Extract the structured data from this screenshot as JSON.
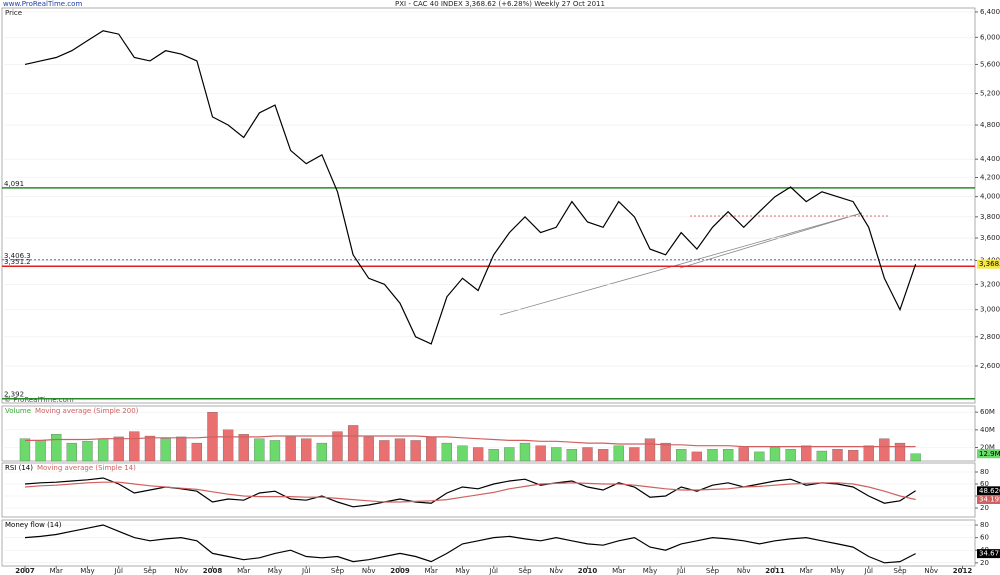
{
  "header": {
    "site": "www.ProRealTime.com",
    "title": "PXI - CAC 40 INDEX   3,368.62 (+6.28%)   Weekly  27 Oct 2011",
    "watermark": "© ProRealTime.com"
  },
  "chart_data": [
    {
      "type": "line",
      "title": "Price",
      "log": true,
      "x": [
        0,
        1,
        2,
        3,
        4,
        5,
        6,
        7,
        8,
        9,
        10,
        11,
        12,
        13,
        14,
        15,
        16,
        17,
        18,
        19,
        20,
        21,
        22,
        23,
        24,
        25,
        26,
        27,
        28,
        29,
        30,
        31,
        32,
        33,
        34,
        35,
        36,
        37,
        38,
        39,
        40,
        41,
        42,
        43,
        44,
        45,
        46,
        47,
        48,
        49,
        50,
        51,
        52,
        53,
        54,
        55,
        56,
        57
      ],
      "xlim": [
        -1.47,
        60.8
      ],
      "xticks": [
        {
          "value": 0,
          "label": "2007"
        },
        {
          "value": 2,
          "label": "Mar"
        },
        {
          "value": 4,
          "label": "May"
        },
        {
          "value": 6,
          "label": "Jul"
        },
        {
          "value": 8,
          "label": "Sep"
        },
        {
          "value": 10,
          "label": "Nov"
        },
        {
          "value": 12,
          "label": "2008"
        },
        {
          "value": 14,
          "label": "Mar"
        },
        {
          "value": 16,
          "label": "May"
        },
        {
          "value": 18,
          "label": "Jul"
        },
        {
          "value": 20,
          "label": "Sep"
        },
        {
          "value": 22,
          "label": "Nov"
        },
        {
          "value": 24,
          "label": "2009"
        },
        {
          "value": 26,
          "label": "Mar"
        },
        {
          "value": 28,
          "label": "May"
        },
        {
          "value": 30,
          "label": "Jul"
        },
        {
          "value": 32,
          "label": "Sep"
        },
        {
          "value": 34,
          "label": "Nov"
        },
        {
          "value": 36,
          "label": "2010"
        },
        {
          "value": 38,
          "label": "Mar"
        },
        {
          "value": 40,
          "label": "May"
        },
        {
          "value": 42,
          "label": "Jul"
        },
        {
          "value": 44,
          "label": "Sep"
        },
        {
          "value": 46,
          "label": "Nov"
        },
        {
          "value": 48,
          "label": "2011"
        },
        {
          "value": 50,
          "label": "Mar"
        },
        {
          "value": 52,
          "label": "May"
        },
        {
          "value": 54,
          "label": "Jul"
        },
        {
          "value": 56,
          "label": "Sep"
        },
        {
          "value": 58,
          "label": "Nov"
        },
        {
          "value": 60,
          "label": "2012"
        }
      ],
      "ylim": [
        2366,
        6465
      ],
      "yticks": [
        {
          "value": 2600,
          "label": "2,600"
        },
        {
          "value": 2800,
          "label": "2,800"
        },
        {
          "value": 3000,
          "label": "3,000"
        },
        {
          "value": 3200,
          "label": "3,200"
        },
        {
          "value": 3400,
          "label": "3,400"
        },
        {
          "value": 3600,
          "label": "3,600"
        },
        {
          "value": 3800,
          "label": "3,800"
        },
        {
          "value": 4000,
          "label": "4,000"
        },
        {
          "value": 4200,
          "label": "4,200"
        },
        {
          "value": 4400,
          "label": "4,400"
        },
        {
          "value": 4800,
          "label": "4,800"
        },
        {
          "value": 5200,
          "label": "5,200"
        },
        {
          "value": 5600,
          "label": "5,600"
        },
        {
          "value": 6000,
          "label": "6,000"
        },
        {
          "value": 6400,
          "label": "6,400"
        }
      ],
      "levels": [
        {
          "value": 4091,
          "label": "4,091",
          "color": "#2a8a2a"
        },
        {
          "value": 3406.3,
          "label": "3,406.3",
          "color": "#3050c0",
          "dash": true
        },
        {
          "value": 3351.2,
          "label": "3,351.2",
          "color": "#e02020"
        },
        {
          "value": 2392,
          "label": "2,392",
          "color": "#2a8a2a"
        }
      ],
      "series": [
        {
          "color": "#000000",
          "label_color": "#f5e642",
          "values": [
            5600,
            5650,
            5700,
            5800,
            5950,
            6100,
            6050,
            5700,
            5650,
            5800,
            5750,
            5650,
            4900,
            4800,
            4650,
            4950,
            5050,
            4500,
            4350,
            4450,
            4050,
            3450,
            3250,
            3200,
            3050,
            2800,
            2750,
            3100,
            3250,
            3150,
            3450,
            3650,
            3800,
            3650,
            3700,
            3950,
            3750,
            3700,
            3950,
            3800,
            3500,
            3450,
            3650,
            3500,
            3700,
            3850,
            3700,
            3850,
            4000,
            4100,
            3950,
            4050,
            4000,
            3950,
            3700,
            3250,
            3000,
            3368.62
          ],
          "value_labels": [
            null,
            null,
            null,
            null,
            null,
            null,
            null,
            null,
            null,
            null,
            null,
            null,
            null,
            null,
            null,
            null,
            null,
            null,
            null,
            null,
            null,
            null,
            null,
            null,
            null,
            null,
            null,
            null,
            null,
            null,
            null,
            null,
            null,
            null,
            null,
            null,
            null,
            null,
            null,
            null,
            null,
            null,
            null,
            null,
            null,
            null,
            null,
            null,
            null,
            null,
            null,
            null,
            null,
            null,
            null,
            null,
            null,
            "3,368.62"
          ]
        }
      ]
    },
    {
      "type": "bar",
      "ylim": [
        4.7,
        67
      ],
      "yticks": [
        {
          "value": 20,
          "label": "20M"
        },
        {
          "value": 40,
          "label": "40M"
        },
        {
          "value": 60,
          "label": "60M"
        }
      ],
      "series": [
        {
          "name": "Volume",
          "color": "#3aa83a",
          "up_color": "#6cd96c",
          "down_color": "#e87070",
          "label_color": "#6cd96c",
          "values": [
            30,
            28,
            35,
            25,
            27,
            30,
            32,
            38,
            33,
            30,
            32,
            25,
            60,
            40,
            35,
            30,
            28,
            32,
            30,
            25,
            38,
            45,
            32,
            28,
            30,
            28,
            32,
            25,
            22,
            20,
            18,
            20,
            25,
            22,
            20,
            18,
            20,
            18,
            22,
            20,
            30,
            25,
            18,
            15,
            18,
            18,
            20,
            15,
            20,
            18,
            22,
            16,
            18,
            17,
            22,
            30,
            25,
            12.9
          ],
          "value_labels": [
            null,
            null,
            null,
            null,
            null,
            null,
            null,
            null,
            null,
            null,
            null,
            null,
            null,
            null,
            null,
            null,
            null,
            null,
            null,
            null,
            null,
            null,
            null,
            null,
            null,
            null,
            null,
            null,
            null,
            null,
            null,
            null,
            null,
            null,
            null,
            null,
            null,
            null,
            null,
            null,
            null,
            null,
            null,
            null,
            null,
            null,
            null,
            null,
            null,
            null,
            null,
            null,
            null,
            null,
            null,
            null,
            null,
            "12.9M"
          ]
        },
        {
          "name": "Moving average (Simple 200)",
          "type": "line",
          "color": "#d06060",
          "values": [
            28,
            28,
            29,
            29,
            29,
            30,
            30,
            30,
            31,
            31,
            31,
            31,
            32,
            32,
            32,
            32,
            33,
            33,
            33,
            33,
            33,
            33,
            33,
            33,
            33,
            33,
            32,
            32,
            31,
            30,
            29,
            28,
            28,
            27,
            27,
            26,
            25,
            25,
            24,
            24,
            24,
            23,
            23,
            22,
            22,
            22,
            21,
            21,
            21,
            21,
            21,
            21,
            21,
            21,
            21,
            21,
            21,
            21
          ]
        }
      ]
    },
    {
      "type": "line",
      "ylim": [
        5,
        95
      ],
      "yticks": [
        20,
        40,
        60,
        80
      ],
      "series": [
        {
          "name": "RSI (14)",
          "color": "#000000",
          "show_last": true,
          "label_color": "#ffffff",
          "values": [
            60,
            62,
            63,
            65,
            67,
            70,
            60,
            45,
            50,
            55,
            52,
            48,
            30,
            35,
            33,
            45,
            48,
            35,
            33,
            40,
            30,
            22,
            25,
            30,
            35,
            30,
            28,
            45,
            55,
            52,
            60,
            65,
            68,
            58,
            62,
            65,
            55,
            50,
            62,
            55,
            38,
            40,
            55,
            48,
            58,
            62,
            55,
            60,
            65,
            68,
            58,
            62,
            60,
            55,
            40,
            28,
            32,
            48.626
          ]
        },
        {
          "name": "Moving average (Simple 14)",
          "color": "#d06060",
          "show_last": true,
          "label_color": "#ffffff",
          "values": [
            55,
            57,
            58,
            60,
            62,
            63,
            63,
            60,
            57,
            55,
            53,
            51,
            47,
            43,
            40,
            39,
            39,
            39,
            38,
            38,
            36,
            34,
            32,
            30,
            30,
            31,
            32,
            34,
            38,
            42,
            46,
            52,
            56,
            60,
            61,
            62,
            61,
            60,
            60,
            58,
            55,
            52,
            50,
            50,
            51,
            52,
            55,
            56,
            58,
            60,
            61,
            62,
            62,
            60,
            55,
            48,
            40,
            34.195
          ]
        }
      ]
    },
    {
      "type": "line",
      "ylim": [
        15,
        88
      ],
      "yticks": [
        20,
        40,
        60,
        80
      ],
      "series": [
        {
          "name": "Money flow (14)",
          "color": "#000000",
          "show_last": true,
          "label_color": "#ffffff",
          "values": [
            60,
            62,
            65,
            70,
            75,
            80,
            70,
            60,
            55,
            58,
            60,
            55,
            35,
            30,
            25,
            28,
            35,
            40,
            30,
            28,
            30,
            22,
            25,
            30,
            35,
            30,
            22,
            35,
            50,
            55,
            60,
            62,
            58,
            55,
            60,
            55,
            50,
            48,
            55,
            60,
            45,
            40,
            50,
            55,
            60,
            58,
            55,
            50,
            55,
            58,
            60,
            55,
            50,
            45,
            30,
            20,
            22,
            34.671
          ]
        }
      ]
    }
  ]
}
